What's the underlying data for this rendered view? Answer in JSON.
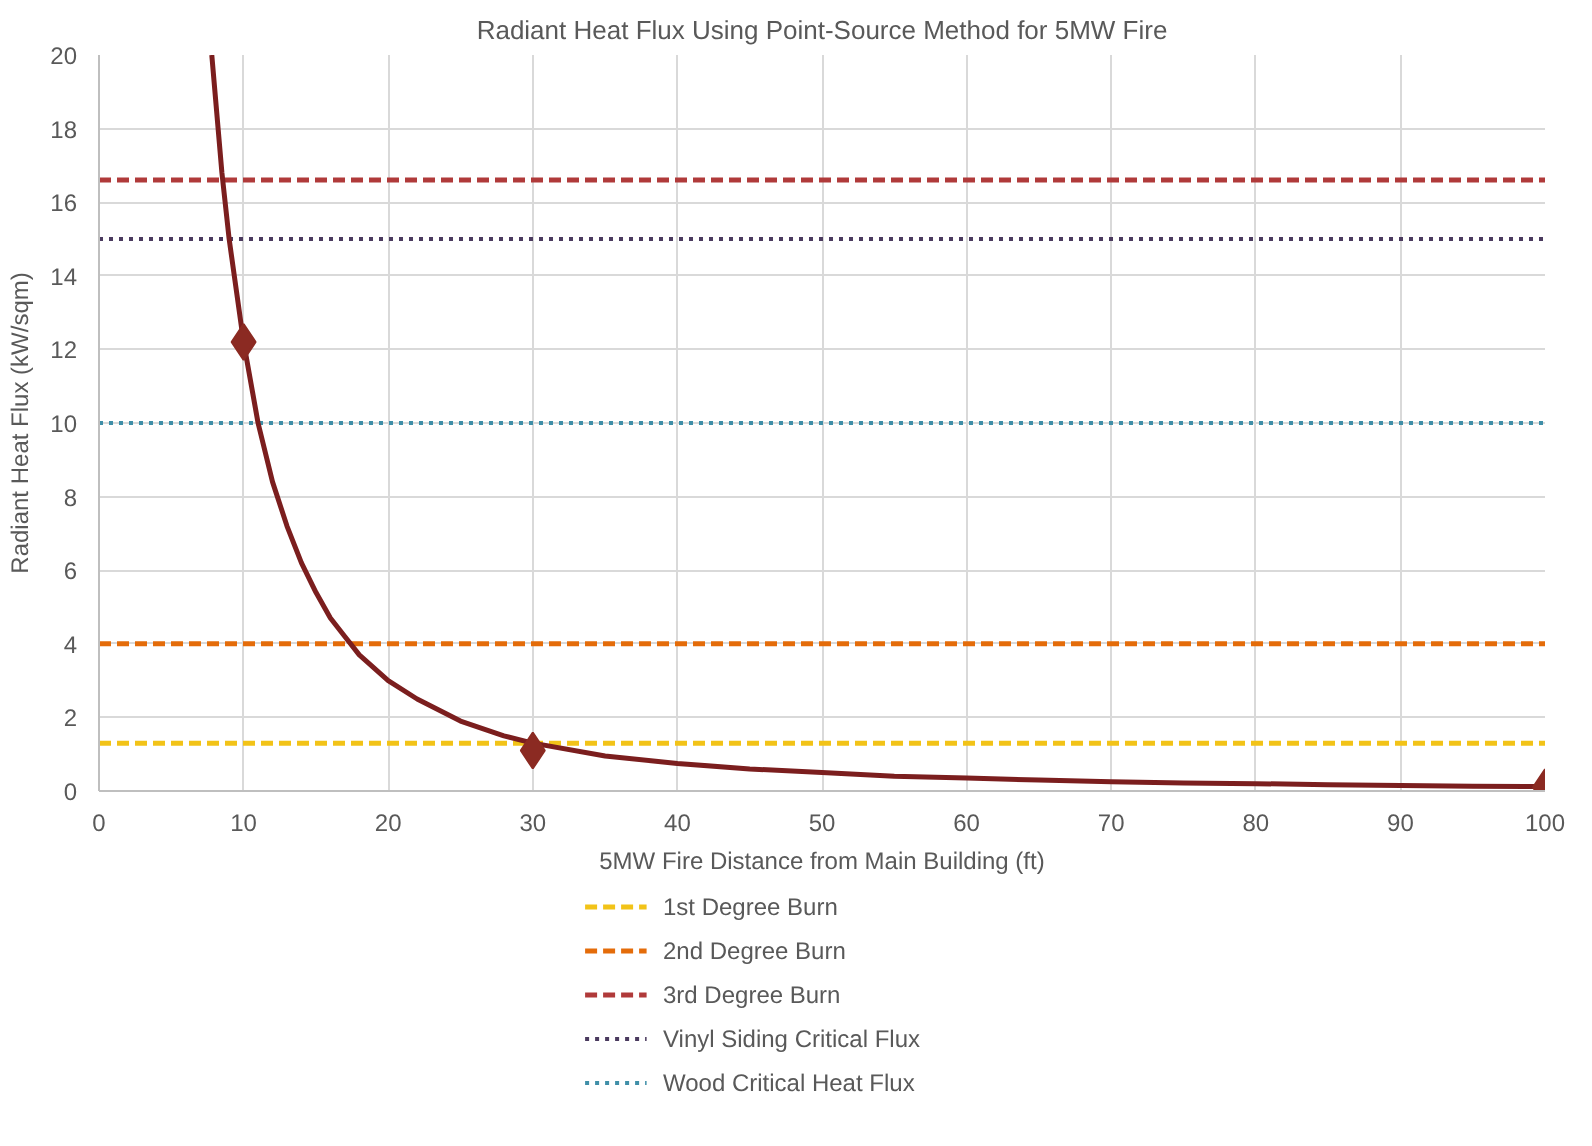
{
  "chart_data": {
    "type": "line",
    "title": "Radiant Heat Flux Using Point-Source Method for 5MW Fire",
    "xlabel": "5MW Fire Distance from Main Building (ft)",
    "ylabel": "Radiant Heat Flux (kW/sqm)",
    "series": [
      {
        "color": "#7b1e1e",
        "marker": "none",
        "x": [
          7.8,
          8.5,
          9,
          10,
          11,
          12,
          13,
          14,
          15,
          16,
          17,
          18,
          20,
          22,
          25,
          28,
          30,
          35,
          40,
          45,
          50,
          55,
          60,
          65,
          70,
          75,
          80,
          85,
          90,
          95,
          100
        ],
        "values": [
          20,
          16.8,
          15,
          12.2,
          10,
          8.4,
          7.2,
          6.2,
          5.4,
          4.7,
          4.2,
          3.7,
          3.0,
          2.5,
          1.9,
          1.5,
          1.3,
          0.95,
          0.75,
          0.6,
          0.5,
          0.4,
          0.35,
          0.3,
          0.25,
          0.22,
          0.2,
          0.17,
          0.15,
          0.13,
          0.12
        ]
      },
      {
        "type": "scatter",
        "color": "#8b2a22",
        "marker": "diamond",
        "x": [
          10,
          30,
          100
        ],
        "values": [
          12.2,
          1.1,
          0.1
        ]
      }
    ],
    "ref_lines": [
      {
        "axis": "y",
        "value": 1.3,
        "label": "1st Degree Burn",
        "color": "#f2c318",
        "line_style": "dashed"
      },
      {
        "axis": "y",
        "value": 4,
        "label": "2nd Degree Burn",
        "color": "#e46c0a",
        "line_style": "dashed"
      },
      {
        "axis": "y",
        "value": 16.6,
        "label": "3rd Degree Burn",
        "color": "#b03a3a",
        "line_style": "dashed"
      },
      {
        "axis": "y",
        "value": 15,
        "label": "Vinyl Siding Critical Flux",
        "color": "#4a3a5e",
        "line_style": "dotted"
      },
      {
        "axis": "y",
        "value": 10,
        "label": "Wood Critical Heat Flux",
        "color": "#3f8fa8",
        "line_style": "dotted"
      }
    ],
    "xlim": [
      0,
      100
    ],
    "xticks": [
      0,
      10,
      20,
      30,
      40,
      50,
      60,
      70,
      80,
      90,
      100
    ],
    "ylim": [
      0,
      20
    ],
    "yticks": [
      0,
      2,
      4,
      6,
      8,
      10,
      12,
      14,
      16,
      18,
      20
    ],
    "grid": true,
    "legend": "bottom"
  }
}
